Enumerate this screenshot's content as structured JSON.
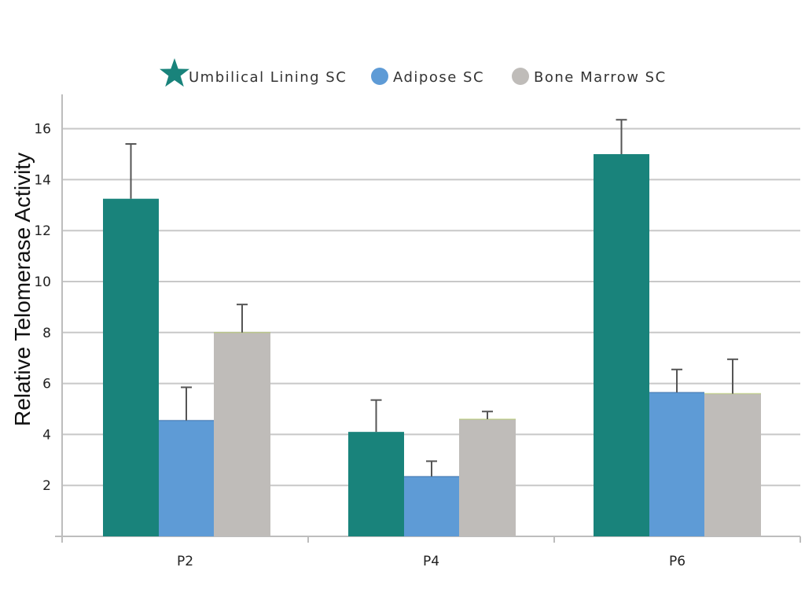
{
  "chart_data": {
    "type": "bar",
    "title": "",
    "xlabel": "",
    "ylabel": "Relative Telomerase Activity",
    "categories": [
      "P2",
      "P4",
      "P6"
    ],
    "ylim": [
      0,
      17.5
    ],
    "yticks": [
      2,
      4,
      6,
      8,
      10,
      12,
      14,
      16
    ],
    "grid": true,
    "legend_position": "top-center",
    "series": [
      {
        "name": "Umbilical Lining SC",
        "color": "#19837b",
        "marker": "star",
        "values": [
          13.25,
          4.1,
          15.0
        ],
        "errors": [
          2.15,
          1.25,
          1.35
        ]
      },
      {
        "name": "Adipose SC",
        "color": "#5e9bd6",
        "marker": "circle",
        "values": [
          4.55,
          2.35,
          5.65
        ],
        "errors": [
          1.3,
          0.6,
          0.9
        ]
      },
      {
        "name": "Bone Marrow SC",
        "color": "#bfbcb9",
        "marker": "circle",
        "values": [
          8.0,
          4.6,
          5.6
        ],
        "errors": [
          1.1,
          0.3,
          1.35
        ]
      }
    ]
  }
}
